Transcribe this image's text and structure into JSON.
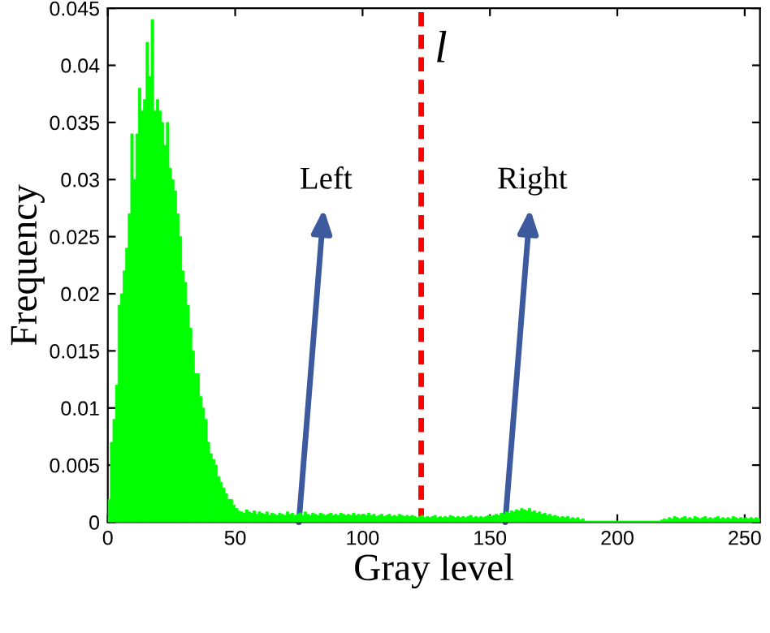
{
  "chart_data": {
    "type": "histogram",
    "xlabel": "Gray level",
    "ylabel": "Frequency",
    "color": "#00ff00",
    "bins": [
      0,
      1,
      2,
      3,
      4,
      5,
      6,
      7,
      8,
      9,
      10,
      11,
      12,
      13,
      14,
      15,
      16,
      17,
      18,
      19,
      20,
      21,
      22,
      23,
      24,
      25,
      26,
      27,
      28,
      29,
      30,
      31,
      32,
      33,
      34,
      35,
      36,
      37,
      38,
      39,
      40,
      41,
      42,
      43,
      44,
      45,
      46,
      47,
      48,
      49,
      50,
      51,
      52,
      53,
      54,
      55,
      56,
      57,
      58,
      59,
      60,
      61,
      62,
      63,
      64,
      65,
      66,
      67,
      68,
      69,
      70,
      71,
      72,
      73,
      74,
      75,
      76,
      77,
      78,
      79,
      80,
      81,
      82,
      83,
      84,
      85,
      86,
      87,
      88,
      89,
      90,
      91,
      92,
      93,
      94,
      95,
      96,
      97,
      98,
      99,
      100,
      101,
      102,
      103,
      104,
      105,
      106,
      107,
      108,
      109,
      110,
      111,
      112,
      113,
      114,
      115,
      116,
      117,
      118,
      119,
      120,
      121,
      122,
      123,
      124,
      125,
      126,
      127,
      128,
      129,
      130,
      131,
      132,
      133,
      134,
      135,
      136,
      137,
      138,
      139,
      140,
      141,
      142,
      143,
      144,
      145,
      146,
      147,
      148,
      149,
      150,
      151,
      152,
      153,
      154,
      155,
      156,
      157,
      158,
      159,
      160,
      161,
      162,
      163,
      164,
      165,
      166,
      167,
      168,
      169,
      170,
      171,
      172,
      173,
      174,
      175,
      176,
      177,
      178,
      179,
      180,
      181,
      182,
      183,
      184,
      185,
      186,
      187,
      188,
      189,
      190,
      191,
      192,
      193,
      194,
      195,
      196,
      197,
      198,
      199,
      200,
      201,
      202,
      203,
      204,
      205,
      206,
      207,
      208,
      209,
      210,
      211,
      212,
      213,
      214,
      215,
      216,
      217,
      218,
      219,
      220,
      221,
      222,
      223,
      224,
      225,
      226,
      227,
      228,
      229,
      230,
      231,
      232,
      233,
      234,
      235,
      236,
      237,
      238,
      239,
      240,
      241,
      242,
      243,
      244,
      245,
      246,
      247,
      248,
      249,
      250,
      251,
      252,
      253,
      254,
      255,
      256
    ],
    "values": [
      0.002,
      0.007,
      0.009,
      0.012,
      0.019,
      0.02,
      0.022,
      0.024,
      0.027,
      0.034,
      0.03,
      0.034,
      0.038,
      0.036,
      0.037,
      0.042,
      0.039,
      0.044,
      0.036,
      0.037,
      0.036,
      0.035,
      0.033,
      0.035,
      0.031,
      0.03,
      0.029,
      0.027,
      0.025,
      0.022,
      0.021,
      0.019,
      0.017,
      0.015,
      0.013,
      0.013,
      0.011,
      0.01,
      0.009,
      0.007,
      0.006,
      0.0055,
      0.005,
      0.004,
      0.0035,
      0.003,
      0.0025,
      0.002,
      0.002,
      0.0015,
      0.0012,
      0.001,
      0.0009,
      0.0008,
      0.0011,
      0.0009,
      0.0008,
      0.001,
      0.0007,
      0.0009,
      0.0008,
      0.0007,
      0.0009,
      0.0006,
      0.0008,
      0.0007,
      0.0006,
      0.0008,
      0.0007,
      0.0006,
      0.0009,
      0.0007,
      0.0008,
      0.0006,
      0.0007,
      0.0008,
      0.0006,
      0.0009,
      0.0007,
      0.0006,
      0.0008,
      0.0007,
      0.0006,
      0.0008,
      0.0007,
      0.0006,
      0.0007,
      0.0008,
      0.0006,
      0.0007,
      0.0006,
      0.0008,
      0.0007,
      0.0006,
      0.0007,
      0.0006,
      0.0008,
      0.0006,
      0.0007,
      0.0006,
      0.0007,
      0.0006,
      0.0008,
      0.0006,
      0.0007,
      0.0005,
      0.0006,
      0.0007,
      0.0005,
      0.0006,
      0.0007,
      0.0005,
      0.0006,
      0.0005,
      0.0007,
      0.0006,
      0.0005,
      0.0006,
      0.0005,
      0.0006,
      0.0005,
      0.0004,
      0.0005,
      0.0006,
      0.0004,
      0.0005,
      0.0004,
      0.0005,
      0.0006,
      0.0004,
      0.0005,
      0.0004,
      0.0005,
      0.0004,
      0.0006,
      0.0005,
      0.0004,
      0.0005,
      0.0004,
      0.0005,
      0.0004,
      0.0005,
      0.0006,
      0.0004,
      0.0005,
      0.0004,
      0.0005,
      0.0004,
      0.0005,
      0.0006,
      0.0005,
      0.0006,
      0.0007,
      0.0006,
      0.0008,
      0.0007,
      0.0009,
      0.0008,
      0.001,
      0.0009,
      0.0011,
      0.001,
      0.0012,
      0.0011,
      0.001,
      0.0012,
      0.0009,
      0.001,
      0.0008,
      0.0009,
      0.0007,
      0.0008,
      0.0006,
      0.0007,
      0.0005,
      0.0006,
      0.0005,
      0.0004,
      0.0005,
      0.0004,
      0.0005,
      0.0003,
      0.0004,
      0.0003,
      0.0004,
      0.0002,
      0.0003,
      0.0001,
      0.0001,
      0.0001,
      0.0001,
      0.0001,
      0.0001,
      0.0001,
      0.0001,
      0.0001,
      0.0001,
      0.0001,
      0.0001,
      0.0001,
      0.0001,
      0.0001,
      0.0001,
      0.0001,
      0.0001,
      0.0001,
      0.0001,
      0.0001,
      0.0001,
      0.0001,
      0.0001,
      0.0001,
      0.0001,
      0.0001,
      0.0001,
      0.0001,
      0.0001,
      0.0002,
      0.0003,
      0.0002,
      0.0004,
      0.0003,
      0.0005,
      0.0004,
      0.0003,
      0.0004,
      0.0005,
      0.0003,
      0.0004,
      0.0003,
      0.0005,
      0.0004,
      0.0003,
      0.0004,
      0.0005,
      0.0003,
      0.0004,
      0.0003,
      0.0004,
      0.0005,
      0.0003,
      0.0004,
      0.0003,
      0.0004,
      0.0003,
      0.0005,
      0.0004,
      0.0003,
      0.0004,
      0.0003,
      0.0004,
      0.0003,
      0.0004,
      0.0003,
      0.0004,
      0.0003
    ],
    "xlim": [
      0,
      256
    ],
    "xticks": [
      0,
      50,
      100,
      150,
      200,
      250
    ],
    "ylim": [
      0,
      0.045
    ],
    "yticks": [
      0,
      0.005,
      0.01,
      0.015,
      0.02,
      0.025,
      0.03,
      0.035,
      0.04,
      0.045
    ],
    "grid": false,
    "ref_lines": [
      {
        "axis": "x",
        "value": 123,
        "label": "l",
        "color": "#ff0000",
        "line_style": "dashed"
      }
    ],
    "annotations": [
      {
        "text": "Left",
        "x": 75,
        "y": 0
      },
      {
        "text": "Right",
        "x": 156,
        "y": 0
      }
    ]
  }
}
